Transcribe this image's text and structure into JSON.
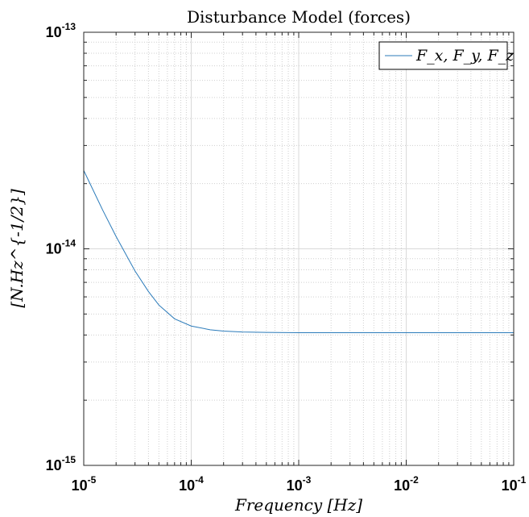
{
  "chart_data": {
    "type": "line",
    "title": "Disturbance Model (forces)",
    "xlabel": "Frequency [Hz]",
    "ylabel": "[N.Hz^{-1/2}]",
    "xscale": "log",
    "yscale": "log",
    "xlim": [
      1e-05,
      0.1
    ],
    "ylim": [
      1e-15,
      1e-13
    ],
    "grid": true,
    "legend_position": "top-right",
    "x_ticks": [
      {
        "value": 1e-05,
        "base": "10",
        "exp": "-5"
      },
      {
        "value": 0.0001,
        "base": "10",
        "exp": "-4"
      },
      {
        "value": 0.001,
        "base": "10",
        "exp": "-3"
      },
      {
        "value": 0.01,
        "base": "10",
        "exp": "-2"
      },
      {
        "value": 0.1,
        "base": "10",
        "exp": "-1"
      }
    ],
    "y_ticks": [
      {
        "value": 1e-15,
        "base": "10",
        "exp": "-15"
      },
      {
        "value": 1e-14,
        "base": "10",
        "exp": "-14"
      },
      {
        "value": 1e-13,
        "base": "10",
        "exp": "-13"
      }
    ],
    "series": [
      {
        "name": "F_x, F_y, F_z",
        "color": "#2b7bba",
        "x": [
          1e-05,
          1.5e-05,
          2e-05,
          3e-05,
          4e-05,
          5e-05,
          7e-05,
          0.0001,
          0.00015,
          0.0002,
          0.0003,
          0.0005,
          0.001,
          0.002,
          0.005,
          0.01,
          0.03,
          0.1
        ],
        "y": [
          2.3e-14,
          1.51e-14,
          1.14e-14,
          7.9e-15,
          6.35e-15,
          5.5e-15,
          4.75e-15,
          4.4e-15,
          4.23e-15,
          4.17e-15,
          4.13e-15,
          4.11e-15,
          4.1e-15,
          4.1e-15,
          4.1e-15,
          4.1e-15,
          4.1e-15,
          4.1e-15
        ]
      }
    ]
  }
}
